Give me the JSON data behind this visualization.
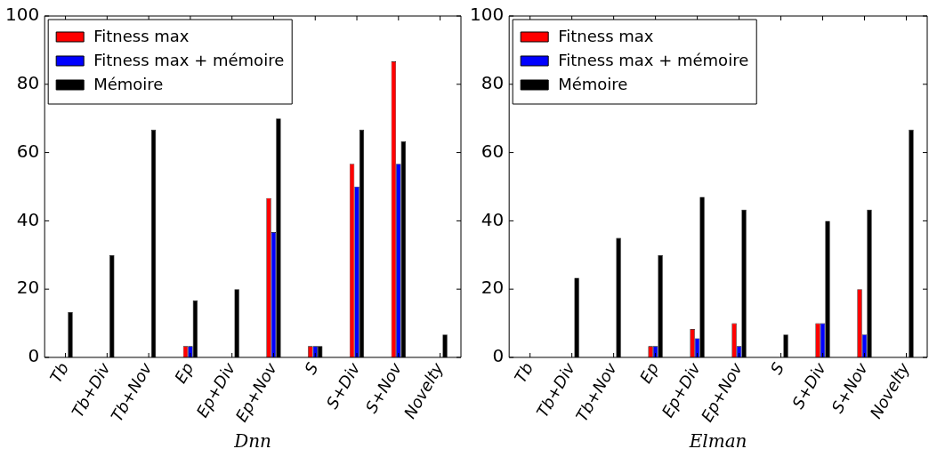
{
  "chart_data": [
    {
      "type": "bar",
      "xlabel": "Dnn",
      "categories": [
        "Tb",
        "Tb+Div",
        "Tb+Nov",
        "Ep",
        "Ep+Div",
        "Ep+Nov",
        "S",
        "S+Div",
        "S+Nov",
        "Novelty"
      ],
      "series": [
        {
          "name": "Fitness max",
          "color": "#ff0000",
          "values": [
            0,
            0,
            0,
            3.3,
            0,
            46.7,
            3.3,
            56.7,
            86.7,
            0
          ]
        },
        {
          "name": "Fitness max + mémoire",
          "color": "#0000ff",
          "values": [
            0,
            0,
            0,
            3.3,
            0,
            36.7,
            3.3,
            50,
            56.7,
            0
          ]
        },
        {
          "name": "Mémoire",
          "color": "#000000",
          "values": [
            13.3,
            30,
            66.7,
            16.7,
            20,
            70,
            3.3,
            66.7,
            63.3,
            6.7
          ]
        }
      ],
      "ylim": [
        0,
        100
      ],
      "yticks": [
        0,
        20,
        40,
        60,
        80,
        100
      ],
      "grid": false,
      "legend": "top left"
    },
    {
      "type": "bar",
      "xlabel": "Elman",
      "categories": [
        "Tb",
        "Tb+Div",
        "Tb+Nov",
        "Ep",
        "Ep+Div",
        "Ep+Nov",
        "S",
        "S+Div",
        "S+Nov",
        "Novelty"
      ],
      "series": [
        {
          "name": "Fitness max",
          "color": "#ff0000",
          "values": [
            null,
            0,
            0,
            3.3,
            8.3,
            10,
            0,
            10,
            20,
            0
          ]
        },
        {
          "name": "Fitness max + mémoire",
          "color": "#0000ff",
          "values": [
            null,
            0,
            0,
            3.3,
            5.6,
            3.3,
            0,
            10,
            6.7,
            0
          ]
        },
        {
          "name": "Mémoire",
          "color": "#000000",
          "values": [
            null,
            23.3,
            35,
            30,
            47,
            43.3,
            6.7,
            40,
            43.3,
            66.7
          ]
        }
      ],
      "ylim": [
        0,
        100
      ],
      "yticks": [
        0,
        20,
        40,
        60,
        80,
        100
      ],
      "grid": false,
      "legend": "top left"
    }
  ]
}
